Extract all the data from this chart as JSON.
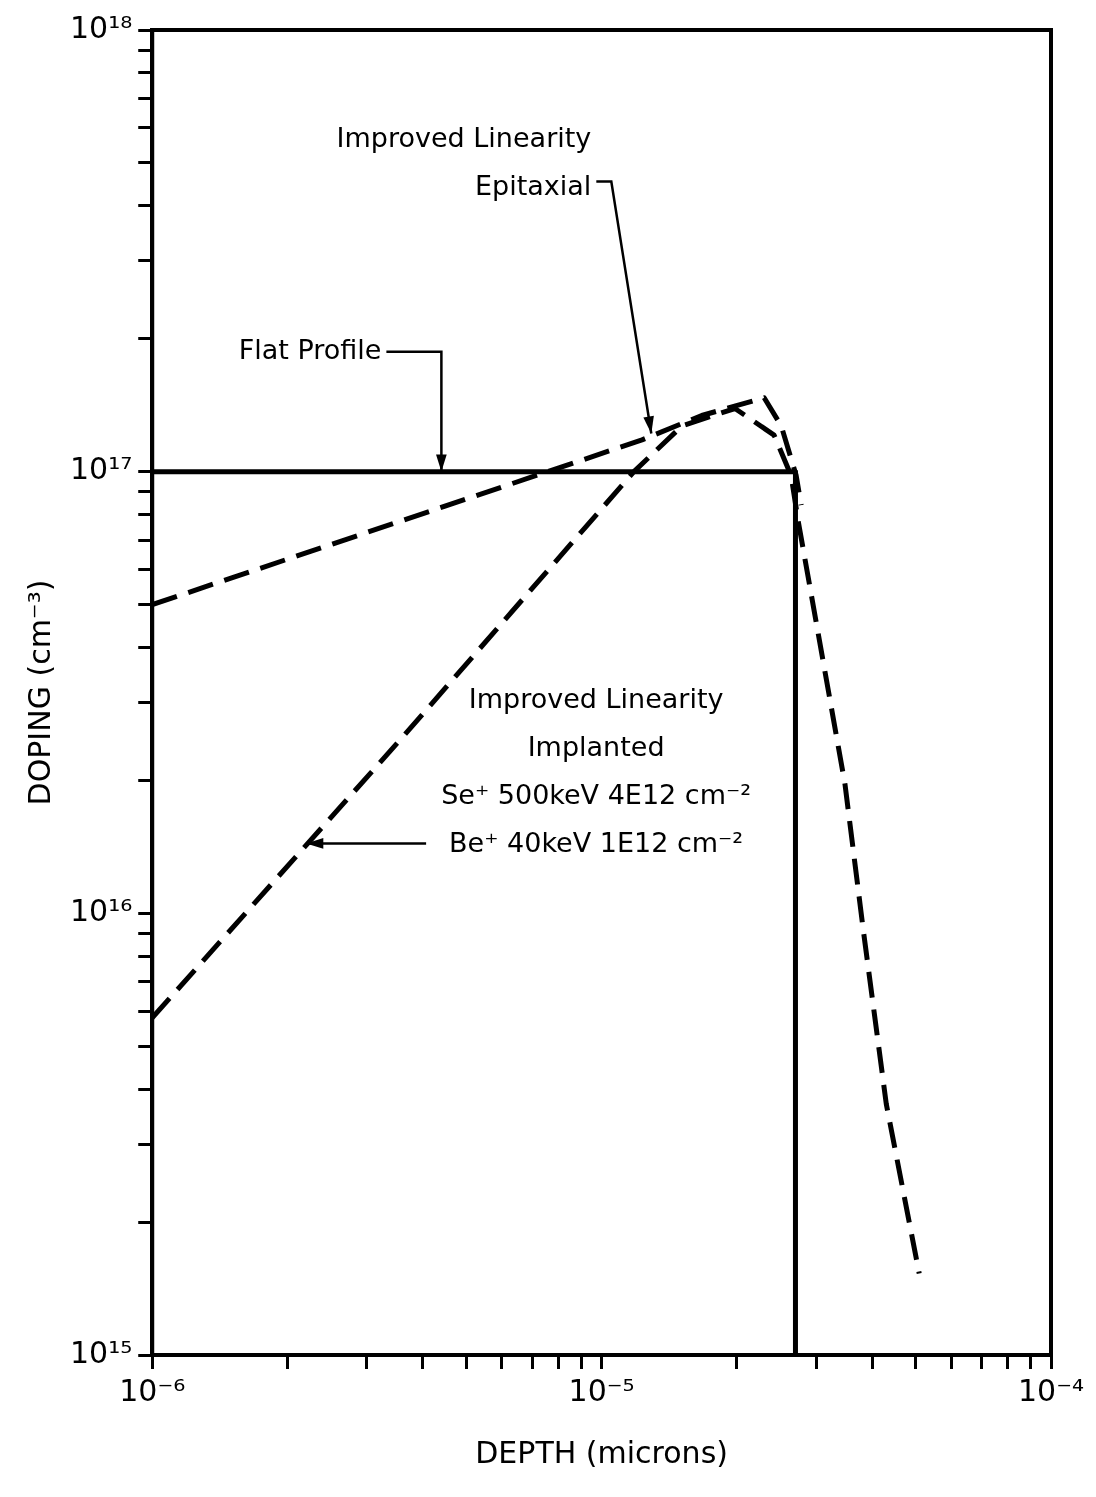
{
  "chart_data": {
    "type": "line",
    "xlabel": "DEPTH (microns)",
    "ylabel": "DOPING (cm⁻³)",
    "log": "xy",
    "grid": false,
    "legend": false,
    "marker": "none",
    "xlim": [
      1e-06,
      0.0001
    ],
    "ylim": [
      1000000000000000.0,
      1e+18
    ],
    "xticks": [
      {
        "value": 1e-06,
        "label": "10⁻⁶"
      },
      {
        "value": 2e-06,
        "label": null
      },
      {
        "value": 3e-06,
        "label": null
      },
      {
        "value": 4e-06,
        "label": null
      },
      {
        "value": 5e-06,
        "label": null
      },
      {
        "value": 6e-06,
        "label": null
      },
      {
        "value": 7e-06,
        "label": null
      },
      {
        "value": 8e-06,
        "label": null
      },
      {
        "value": 9e-06,
        "label": null
      },
      {
        "value": 1e-05,
        "label": "10⁻⁵"
      },
      {
        "value": 2e-05,
        "label": null
      },
      {
        "value": 3e-05,
        "label": null
      },
      {
        "value": 4e-05,
        "label": null
      },
      {
        "value": 5e-05,
        "label": null
      },
      {
        "value": 6e-05,
        "label": null
      },
      {
        "value": 7e-05,
        "label": null
      },
      {
        "value": 8e-05,
        "label": null
      },
      {
        "value": 9e-05,
        "label": null
      },
      {
        "value": 0.0001,
        "label": "10⁻⁴"
      }
    ],
    "yticks": [
      {
        "value": 1000000000000000.0,
        "label": "10¹⁵"
      },
      {
        "value": 2000000000000000.0,
        "label": null
      },
      {
        "value": 3000000000000000.0,
        "label": null
      },
      {
        "value": 4000000000000000.0,
        "label": null
      },
      {
        "value": 5000000000000000.0,
        "label": null
      },
      {
        "value": 6000000000000000.0,
        "label": null
      },
      {
        "value": 7000000000000000.0,
        "label": null
      },
      {
        "value": 8000000000000000.0,
        "label": null
      },
      {
        "value": 9000000000000000.0,
        "label": null
      },
      {
        "value": 1e+16,
        "label": "10¹⁶"
      },
      {
        "value": 2e+16,
        "label": null
      },
      {
        "value": 3e+16,
        "label": null
      },
      {
        "value": 4e+16,
        "label": null
      },
      {
        "value": 5e+16,
        "label": null
      },
      {
        "value": 6e+16,
        "label": null
      },
      {
        "value": 7e+16,
        "label": null
      },
      {
        "value": 8e+16,
        "label": null
      },
      {
        "value": 9e+16,
        "label": null
      },
      {
        "value": 1e+17,
        "label": "10¹⁷"
      },
      {
        "value": 2e+17,
        "label": null
      },
      {
        "value": 3e+17,
        "label": null
      },
      {
        "value": 4e+17,
        "label": null
      },
      {
        "value": 5e+17,
        "label": null
      },
      {
        "value": 6e+17,
        "label": null
      },
      {
        "value": 7e+17,
        "label": null
      },
      {
        "value": 8e+17,
        "label": null
      },
      {
        "value": 9e+17,
        "label": null
      },
      {
        "value": 1e+18,
        "label": "10¹⁸"
      }
    ],
    "series": [
      {
        "color": "#000000",
        "line_style": "solid",
        "x": [
          1e-06,
          2.7e-05,
          2.7e-05
        ],
        "values": [
          1e+17,
          1e+17,
          1000000000000000.0
        ]
      },
      {
        "color": "#000000",
        "line_style": "dashed",
        "x": [
          1e-06,
          1.23e-05,
          1.67e-05,
          2.3e-05,
          2.51e-05,
          2.71e-05,
          2.78e-05
        ],
        "values": [
          5e+16,
          1.18e+17,
          1.34e+17,
          1.47e+17,
          1.27e+17,
          9.8e+16,
          8.4e+16
        ]
      },
      {
        "color": "#000000",
        "line_style": "dashed",
        "x": [
          1e-06,
          3.6e-06,
          1.18e-05,
          1.51e-05,
          1.98e-05,
          2.42e-05,
          2.64e-05,
          2.74e-05,
          3.48e-05,
          3.82e-05,
          4.3e-05,
          5.09e-05
        ],
        "values": [
          5800000000000000.0,
          2.5e+16,
          1e+17,
          1.27e+17,
          1.39e+17,
          1.21e+17,
          9.8e+16,
          7.7e+16,
          1.96e+16,
          9200000000000000.0,
          3700000000000000.0,
          1530000000000000.0
        ]
      }
    ],
    "annotations": [
      {
        "text": "Improved Linearity\nEpitaxial",
        "x": 1.29e-05,
        "y": 1.22e+17
      },
      {
        "text": "Flat Profile",
        "x": 4.4e-06,
        "y": 1e+17
      },
      {
        "text": "Improved Linearity\nImplanted\nSe⁺ 500keV 4E12 cm⁻²\nBe⁺ 40keV 1E12 cm⁻²",
        "x": 2.2e-06,
        "y": 1.44e+16
      }
    ]
  }
}
